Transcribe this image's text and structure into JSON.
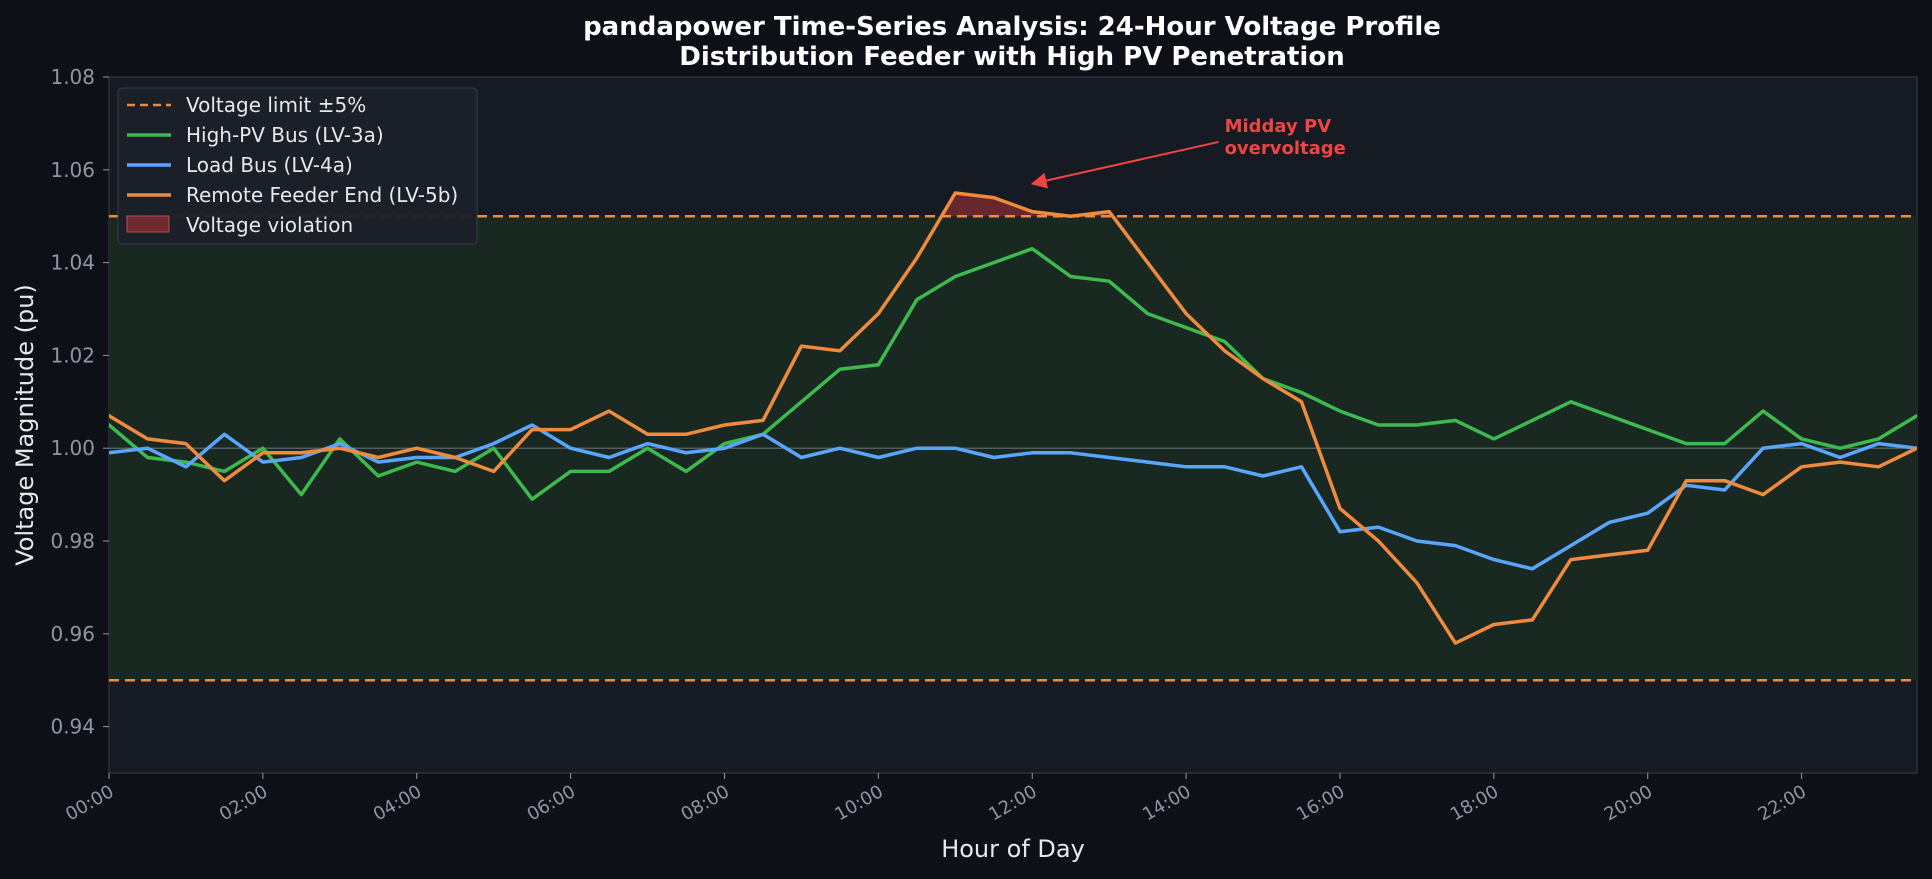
{
  "chart_data": {
    "type": "line",
    "title": [
      "pandapower Time-Series Analysis: 24-Hour Voltage Profile",
      "Distribution Feeder with High PV Penetration"
    ],
    "xlabel": "Hour of Day",
    "ylabel": "Voltage Magnitude (pu)",
    "xlim": [
      0,
      23.5
    ],
    "ylim": [
      0.93,
      1.08
    ],
    "y_ticks": [
      0.94,
      0.96,
      0.98,
      1.0,
      1.02,
      1.04,
      1.06,
      1.08
    ],
    "x_ticks": [
      0,
      2,
      4,
      6,
      8,
      10,
      12,
      14,
      16,
      18,
      20,
      22
    ],
    "x_tick_labels": [
      "00:00",
      "02:00",
      "04:00",
      "06:00",
      "08:00",
      "10:00",
      "12:00",
      "14:00",
      "16:00",
      "18:00",
      "20:00",
      "22:00"
    ],
    "grid": false,
    "legend_position": "upper-left",
    "voltage_limits": {
      "upper": 1.05,
      "lower": 0.95,
      "nominal": 1.0,
      "label": "Voltage limit ±5%",
      "color": "#f08a3c"
    },
    "violation": {
      "label": "Voltage violation",
      "color": "#8b2e32"
    },
    "x": [
      0,
      0.5,
      1,
      1.5,
      2,
      2.5,
      3,
      3.5,
      4,
      4.5,
      5,
      5.5,
      6,
      6.5,
      7,
      7.5,
      8,
      8.5,
      9,
      9.5,
      10,
      10.5,
      11,
      11.5,
      12,
      12.5,
      13,
      13.5,
      14,
      14.5,
      15,
      15.5,
      16,
      16.5,
      17,
      17.5,
      18,
      18.5,
      19,
      19.5,
      20,
      20.5,
      21,
      21.5,
      22,
      22.5,
      23,
      23.5
    ],
    "series": [
      {
        "name": "High-PV Bus (LV-3a)",
        "color": "#3dba4e",
        "values": [
          1.005,
          0.998,
          0.997,
          0.995,
          1.0,
          0.99,
          1.002,
          0.994,
          0.997,
          0.995,
          1.0,
          0.989,
          0.995,
          0.995,
          1.0,
          0.995,
          1.001,
          1.003,
          1.01,
          1.017,
          1.018,
          1.032,
          1.037,
          1.04,
          1.043,
          1.037,
          1.036,
          1.029,
          1.026,
          1.023,
          1.015,
          1.012,
          1.008,
          1.005,
          1.005,
          1.006,
          1.002,
          1.006,
          1.01,
          1.007,
          1.004,
          1.001,
          1.001,
          1.008,
          1.002,
          1.0,
          1.002,
          1.007
        ]
      },
      {
        "name": "Load Bus (LV-4a)",
        "color": "#58a6ff",
        "values": [
          0.999,
          1.0,
          0.996,
          1.003,
          0.997,
          0.998,
          1.001,
          0.997,
          0.998,
          0.998,
          1.001,
          1.005,
          1.0,
          0.998,
          1.001,
          0.999,
          1.0,
          1.003,
          0.998,
          1.0,
          0.998,
          1.0,
          1.0,
          0.998,
          0.999,
          0.999,
          0.998,
          0.997,
          0.996,
          0.996,
          0.994,
          0.996,
          0.982,
          0.983,
          0.98,
          0.979,
          0.976,
          0.974,
          0.979,
          0.984,
          0.986,
          0.992,
          0.991,
          1.0,
          1.001,
          0.998,
          1.001,
          1.0
        ]
      },
      {
        "name": "Remote Feeder End (LV-5b)",
        "color": "#f08a3c",
        "values": [
          1.007,
          1.002,
          1.001,
          0.993,
          0.999,
          0.999,
          1.0,
          0.998,
          1.0,
          0.998,
          0.995,
          1.004,
          1.004,
          1.008,
          1.003,
          1.003,
          1.005,
          1.006,
          1.022,
          1.021,
          1.029,
          1.041,
          1.055,
          1.054,
          1.051,
          1.05,
          1.051,
          1.04,
          1.029,
          1.021,
          1.015,
          1.01,
          0.987,
          0.98,
          0.971,
          0.958,
          0.962,
          0.963,
          0.976,
          0.977,
          0.978,
          0.993,
          0.993,
          0.99,
          0.996,
          0.997,
          0.996,
          1.0
        ]
      }
    ],
    "annotation": {
      "text": [
        "Midday PV",
        "overvoltage"
      ],
      "color": "#ef4444",
      "target": [
        12.0,
        1.057
      ],
      "text_anchor": [
        14.5,
        1.066
      ]
    }
  }
}
